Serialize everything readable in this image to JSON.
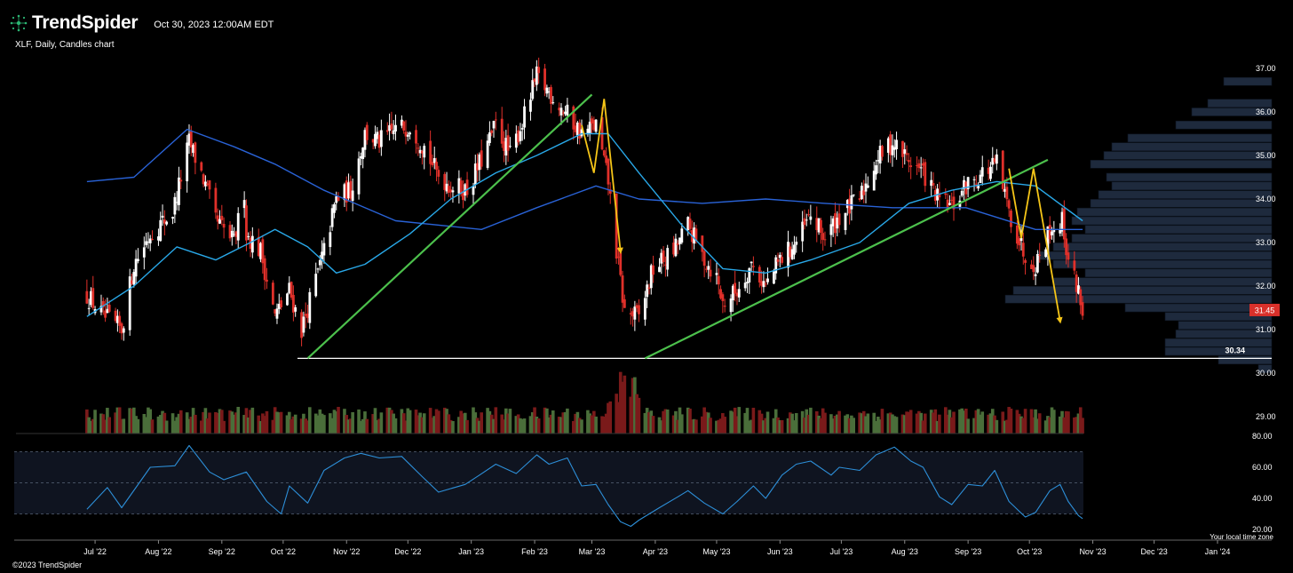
{
  "header": {
    "brand": "TrendSpider",
    "datetime": "Oct 30, 2023 12:00AM EDT",
    "symbol_line": "XLF, Daily, Candles chart"
  },
  "footer": {
    "copyright": "©2023 TrendSpider",
    "timezone_note": "Your local time zone"
  },
  "colors": {
    "background": "#000000",
    "bull": "#ffffff",
    "bear": "#e0302a",
    "sma_fast": "#29a8e8",
    "sma_slow": "#2962d6",
    "trendline": "#4cc04c",
    "arrow": "#f5c518",
    "volume_profile": "#1e2a3d",
    "rsi_line": "#2d8fd8",
    "last_price_bg": "#d9302a",
    "volume_bull": "#4a6e3a",
    "volume_bear": "#7a1a1a"
  },
  "chart_data": {
    "type": "candlestick",
    "title": "XLF, Daily, Candles chart",
    "x_ticks": [
      "Jul '22",
      "Aug '22",
      "Sep '22",
      "Oct '22",
      "Nov '22",
      "Dec '22",
      "Jan '23",
      "Feb '23",
      "Mar '23",
      "Apr '23",
      "May '23",
      "Jun '23",
      "Jul '23",
      "Aug '23",
      "Sep '23",
      "Oct '23",
      "Nov '23",
      "Dec '23",
      "Jan '24"
    ],
    "price_axis": {
      "range": [
        29.0,
        37.0
      ],
      "ticks": [
        "37.00",
        "36.00",
        "35.00",
        "34.00",
        "33.00",
        "32.00",
        "31.00",
        "30.00",
        "29.00"
      ]
    },
    "last_price": "31.45",
    "support_level": {
      "value": 30.34,
      "label": "30.34"
    },
    "close_series": [
      {
        "date": "2022-06-27",
        "close": 31.8
      },
      {
        "date": "2022-07-05",
        "close": 31.3
      },
      {
        "date": "2022-07-14",
        "close": 31.0
      },
      {
        "date": "2022-07-20",
        "close": 32.5
      },
      {
        "date": "2022-07-28",
        "close": 33.2
      },
      {
        "date": "2022-08-08",
        "close": 33.7
      },
      {
        "date": "2022-08-16",
        "close": 35.3
      },
      {
        "date": "2022-08-22",
        "close": 34.6
      },
      {
        "date": "2022-08-29",
        "close": 33.5
      },
      {
        "date": "2022-09-07",
        "close": 33.0
      },
      {
        "date": "2022-09-12",
        "close": 34.2
      },
      {
        "date": "2022-09-13",
        "close": 33.2
      },
      {
        "date": "2022-09-20",
        "close": 32.8
      },
      {
        "date": "2022-09-27",
        "close": 31.3
      },
      {
        "date": "2022-10-04",
        "close": 31.9
      },
      {
        "date": "2022-10-10",
        "close": 31.0
      },
      {
        "date": "2022-10-13",
        "close": 31.5
      },
      {
        "date": "2022-10-21",
        "close": 32.8
      },
      {
        "date": "2022-10-27",
        "close": 34.0
      },
      {
        "date": "2022-11-03",
        "close": 34.2
      },
      {
        "date": "2022-11-10",
        "close": 35.5
      },
      {
        "date": "2022-11-17",
        "close": 35.3
      },
      {
        "date": "2022-11-25",
        "close": 35.6
      },
      {
        "date": "2022-12-02",
        "close": 35.7
      },
      {
        "date": "2022-12-09",
        "close": 35.2
      },
      {
        "date": "2022-12-15",
        "close": 34.6
      },
      {
        "date": "2022-12-22",
        "close": 34.3
      },
      {
        "date": "2022-12-30",
        "close": 34.2
      },
      {
        "date": "2023-01-06",
        "close": 34.9
      },
      {
        "date": "2023-01-13",
        "close": 35.7
      },
      {
        "date": "2023-01-20",
        "close": 35.0
      },
      {
        "date": "2023-01-27",
        "close": 35.9
      },
      {
        "date": "2023-02-02",
        "close": 36.8
      },
      {
        "date": "2023-02-09",
        "close": 36.4
      },
      {
        "date": "2023-02-16",
        "close": 36.0
      },
      {
        "date": "2023-02-24",
        "close": 35.5
      },
      {
        "date": "2023-03-03",
        "close": 35.7
      },
      {
        "date": "2023-03-09",
        "close": 34.4
      },
      {
        "date": "2023-03-13",
        "close": 32.8
      },
      {
        "date": "2023-03-17",
        "close": 31.4
      },
      {
        "date": "2023-03-24",
        "close": 31.3
      },
      {
        "date": "2023-03-31",
        "close": 32.4
      },
      {
        "date": "2023-04-10",
        "close": 32.8
      },
      {
        "date": "2023-04-17",
        "close": 33.4
      },
      {
        "date": "2023-04-24",
        "close": 32.7
      },
      {
        "date": "2023-05-01",
        "close": 32.2
      },
      {
        "date": "2023-05-04",
        "close": 31.6
      },
      {
        "date": "2023-05-11",
        "close": 31.9
      },
      {
        "date": "2023-05-18",
        "close": 32.5
      },
      {
        "date": "2023-05-25",
        "close": 32.0
      },
      {
        "date": "2023-06-01",
        "close": 32.6
      },
      {
        "date": "2023-06-09",
        "close": 33.0
      },
      {
        "date": "2023-06-16",
        "close": 33.6
      },
      {
        "date": "2023-06-23",
        "close": 33.1
      },
      {
        "date": "2023-06-30",
        "close": 33.6
      },
      {
        "date": "2023-07-10",
        "close": 34.0
      },
      {
        "date": "2023-07-18",
        "close": 34.9
      },
      {
        "date": "2023-07-26",
        "close": 35.3
      },
      {
        "date": "2023-08-03",
        "close": 34.9
      },
      {
        "date": "2023-08-10",
        "close": 34.6
      },
      {
        "date": "2023-08-17",
        "close": 34.0
      },
      {
        "date": "2023-08-24",
        "close": 33.8
      },
      {
        "date": "2023-08-31",
        "close": 34.3
      },
      {
        "date": "2023-09-08",
        "close": 34.6
      },
      {
        "date": "2023-09-15",
        "close": 34.8
      },
      {
        "date": "2023-09-21",
        "close": 33.7
      },
      {
        "date": "2023-09-28",
        "close": 32.8
      },
      {
        "date": "2023-10-04",
        "close": 32.5
      },
      {
        "date": "2023-10-11",
        "close": 33.3
      },
      {
        "date": "2023-10-17",
        "close": 33.5
      },
      {
        "date": "2023-10-20",
        "close": 32.6
      },
      {
        "date": "2023-10-25",
        "close": 31.9
      },
      {
        "date": "2023-10-27",
        "close": 31.45
      }
    ],
    "sma_fast_series": [
      {
        "date": "2022-06-27",
        "value": 31.3
      },
      {
        "date": "2022-07-20",
        "value": 32.0
      },
      {
        "date": "2022-08-10",
        "value": 32.9
      },
      {
        "date": "2022-08-29",
        "value": 32.6
      },
      {
        "date": "2022-09-15",
        "value": 33.0
      },
      {
        "date": "2022-09-27",
        "value": 33.3
      },
      {
        "date": "2022-10-13",
        "value": 32.9
      },
      {
        "date": "2022-10-27",
        "value": 32.3
      },
      {
        "date": "2022-11-10",
        "value": 32.5
      },
      {
        "date": "2022-12-02",
        "value": 33.2
      },
      {
        "date": "2022-12-22",
        "value": 34.0
      },
      {
        "date": "2023-01-13",
        "value": 34.6
      },
      {
        "date": "2023-02-02",
        "value": 35.0
      },
      {
        "date": "2023-02-24",
        "value": 35.5
      },
      {
        "date": "2023-03-09",
        "value": 35.5
      },
      {
        "date": "2023-03-24",
        "value": 34.6
      },
      {
        "date": "2023-04-14",
        "value": 33.4
      },
      {
        "date": "2023-05-04",
        "value": 32.4
      },
      {
        "date": "2023-05-25",
        "value": 32.3
      },
      {
        "date": "2023-06-16",
        "value": 32.6
      },
      {
        "date": "2023-07-10",
        "value": 33.0
      },
      {
        "date": "2023-08-03",
        "value": 33.9
      },
      {
        "date": "2023-08-24",
        "value": 34.2
      },
      {
        "date": "2023-09-15",
        "value": 34.4
      },
      {
        "date": "2023-10-04",
        "value": 34.3
      },
      {
        "date": "2023-10-27",
        "value": 33.5
      }
    ],
    "sma_slow_series": [
      {
        "date": "2022-06-27",
        "value": 34.4
      },
      {
        "date": "2022-07-20",
        "value": 34.5
      },
      {
        "date": "2022-08-15",
        "value": 35.6
      },
      {
        "date": "2022-09-07",
        "value": 35.2
      },
      {
        "date": "2022-09-27",
        "value": 34.8
      },
      {
        "date": "2022-10-21",
        "value": 34.2
      },
      {
        "date": "2022-11-25",
        "value": 33.5
      },
      {
        "date": "2023-01-06",
        "value": 33.3
      },
      {
        "date": "2023-02-02",
        "value": 33.8
      },
      {
        "date": "2023-03-03",
        "value": 34.3
      },
      {
        "date": "2023-03-24",
        "value": 34.0
      },
      {
        "date": "2023-04-24",
        "value": 33.9
      },
      {
        "date": "2023-05-25",
        "value": 34.0
      },
      {
        "date": "2023-06-23",
        "value": 33.9
      },
      {
        "date": "2023-07-26",
        "value": 33.8
      },
      {
        "date": "2023-08-31",
        "value": 33.8
      },
      {
        "date": "2023-10-04",
        "value": 33.3
      },
      {
        "date": "2023-10-27",
        "value": 33.3
      }
    ],
    "volume_profile_levels": [
      {
        "price": 36.7,
        "volume": 0.18
      },
      {
        "price": 36.2,
        "volume": 0.24
      },
      {
        "price": 36.0,
        "volume": 0.3
      },
      {
        "price": 35.7,
        "volume": 0.36
      },
      {
        "price": 35.4,
        "volume": 0.54
      },
      {
        "price": 35.2,
        "volume": 0.6
      },
      {
        "price": 35.0,
        "volume": 0.63
      },
      {
        "price": 34.8,
        "volume": 0.68
      },
      {
        "price": 34.5,
        "volume": 0.62
      },
      {
        "price": 34.3,
        "volume": 0.6
      },
      {
        "price": 34.1,
        "volume": 0.65
      },
      {
        "price": 33.9,
        "volume": 0.68
      },
      {
        "price": 33.7,
        "volume": 0.73
      },
      {
        "price": 33.5,
        "volume": 0.75
      },
      {
        "price": 33.3,
        "volume": 0.7
      },
      {
        "price": 33.1,
        "volume": 0.75
      },
      {
        "price": 32.9,
        "volume": 0.82
      },
      {
        "price": 32.7,
        "volume": 0.88
      },
      {
        "price": 32.5,
        "volume": 0.82
      },
      {
        "price": 32.3,
        "volume": 0.7
      },
      {
        "price": 32.1,
        "volume": 0.82
      },
      {
        "price": 31.9,
        "volume": 0.97
      },
      {
        "price": 31.7,
        "volume": 1.0
      },
      {
        "price": 31.5,
        "volume": 0.55
      },
      {
        "price": 31.3,
        "volume": 0.4
      },
      {
        "price": 31.1,
        "volume": 0.35
      },
      {
        "price": 30.9,
        "volume": 0.36
      },
      {
        "price": 30.7,
        "volume": 0.4
      },
      {
        "price": 30.5,
        "volume": 0.4
      },
      {
        "price": 30.3,
        "volume": 0.2
      },
      {
        "price": 30.1,
        "volume": 0.05
      }
    ],
    "trendlines": [
      {
        "name": "rising-support-1",
        "from": {
          "date": "2022-10-13",
          "price": 30.34
        },
        "to": {
          "date": "2023-03-01",
          "price": 36.4
        }
      },
      {
        "name": "rising-support-2",
        "from": {
          "date": "2023-03-27",
          "price": 30.34
        },
        "to": {
          "date": "2023-10-10",
          "price": 34.9
        }
      }
    ],
    "projection_arrows": [
      {
        "name": "march-projection",
        "points": [
          {
            "date": "2023-02-24",
            "price": 35.7
          },
          {
            "date": "2023-03-02",
            "price": 34.6
          },
          {
            "date": "2023-03-07",
            "price": 36.3
          },
          {
            "date": "2023-03-15",
            "price": 32.8
          }
        ]
      },
      {
        "name": "october-projection",
        "points": [
          {
            "date": "2023-09-21",
            "price": 34.7
          },
          {
            "date": "2023-09-27",
            "price": 33.1
          },
          {
            "date": "2023-10-03",
            "price": 34.7
          },
          {
            "date": "2023-10-16",
            "price": 31.2
          }
        ]
      }
    ],
    "rsi_axis": {
      "range": [
        20,
        80
      ],
      "ticks": [
        "80.00",
        "60.00",
        "40.00",
        "20.00"
      ]
    },
    "rsi_series": [
      {
        "date": "2022-06-27",
        "value": 33
      },
      {
        "date": "2022-07-07",
        "value": 47
      },
      {
        "date": "2022-07-14",
        "value": 34
      },
      {
        "date": "2022-07-28",
        "value": 60
      },
      {
        "date": "2022-08-09",
        "value": 61
      },
      {
        "date": "2022-08-16",
        "value": 74
      },
      {
        "date": "2022-08-26",
        "value": 57
      },
      {
        "date": "2022-09-02",
        "value": 52
      },
      {
        "date": "2022-09-13",
        "value": 57
      },
      {
        "date": "2022-09-23",
        "value": 38
      },
      {
        "date": "2022-09-30",
        "value": 30
      },
      {
        "date": "2022-10-04",
        "value": 48
      },
      {
        "date": "2022-10-13",
        "value": 37
      },
      {
        "date": "2022-10-21",
        "value": 58
      },
      {
        "date": "2022-10-31",
        "value": 66
      },
      {
        "date": "2022-11-08",
        "value": 69
      },
      {
        "date": "2022-11-17",
        "value": 66
      },
      {
        "date": "2022-11-28",
        "value": 67
      },
      {
        "date": "2022-12-08",
        "value": 54
      },
      {
        "date": "2022-12-16",
        "value": 44
      },
      {
        "date": "2022-12-29",
        "value": 49
      },
      {
        "date": "2023-01-05",
        "value": 55
      },
      {
        "date": "2023-01-13",
        "value": 62
      },
      {
        "date": "2023-01-23",
        "value": 56
      },
      {
        "date": "2023-02-02",
        "value": 68
      },
      {
        "date": "2023-02-08",
        "value": 62
      },
      {
        "date": "2023-02-17",
        "value": 66
      },
      {
        "date": "2023-02-24",
        "value": 48
      },
      {
        "date": "2023-03-03",
        "value": 49
      },
      {
        "date": "2023-03-09",
        "value": 36
      },
      {
        "date": "2023-03-15",
        "value": 25
      },
      {
        "date": "2023-03-20",
        "value": 22
      },
      {
        "date": "2023-03-24",
        "value": 26
      },
      {
        "date": "2023-04-03",
        "value": 34
      },
      {
        "date": "2023-04-12",
        "value": 41
      },
      {
        "date": "2023-04-17",
        "value": 45
      },
      {
        "date": "2023-04-25",
        "value": 37
      },
      {
        "date": "2023-05-04",
        "value": 30
      },
      {
        "date": "2023-05-11",
        "value": 38
      },
      {
        "date": "2023-05-19",
        "value": 48
      },
      {
        "date": "2023-05-25",
        "value": 40
      },
      {
        "date": "2023-06-02",
        "value": 55
      },
      {
        "date": "2023-06-09",
        "value": 62
      },
      {
        "date": "2023-06-16",
        "value": 64
      },
      {
        "date": "2023-06-26",
        "value": 55
      },
      {
        "date": "2023-06-30",
        "value": 60
      },
      {
        "date": "2023-07-10",
        "value": 58
      },
      {
        "date": "2023-07-18",
        "value": 68
      },
      {
        "date": "2023-07-27",
        "value": 73
      },
      {
        "date": "2023-08-04",
        "value": 64
      },
      {
        "date": "2023-08-10",
        "value": 60
      },
      {
        "date": "2023-08-18",
        "value": 41
      },
      {
        "date": "2023-08-24",
        "value": 36
      },
      {
        "date": "2023-09-01",
        "value": 49
      },
      {
        "date": "2023-09-08",
        "value": 48
      },
      {
        "date": "2023-09-14",
        "value": 58
      },
      {
        "date": "2023-09-21",
        "value": 38
      },
      {
        "date": "2023-09-29",
        "value": 28
      },
      {
        "date": "2023-10-04",
        "value": 31
      },
      {
        "date": "2023-10-11",
        "value": 45
      },
      {
        "date": "2023-10-16",
        "value": 49
      },
      {
        "date": "2023-10-20",
        "value": 38
      },
      {
        "date": "2023-10-25",
        "value": 29
      },
      {
        "date": "2023-10-27",
        "value": 27
      }
    ]
  }
}
